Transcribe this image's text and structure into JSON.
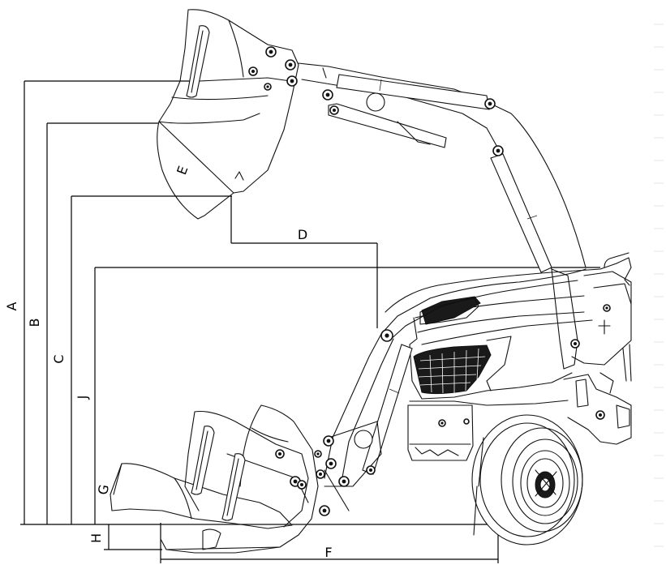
{
  "labels": {
    "A": "A",
    "B": "B",
    "C": "C",
    "D": "D",
    "E": "E",
    "F": "F",
    "G": "G",
    "H": "H",
    "J": "J"
  }
}
